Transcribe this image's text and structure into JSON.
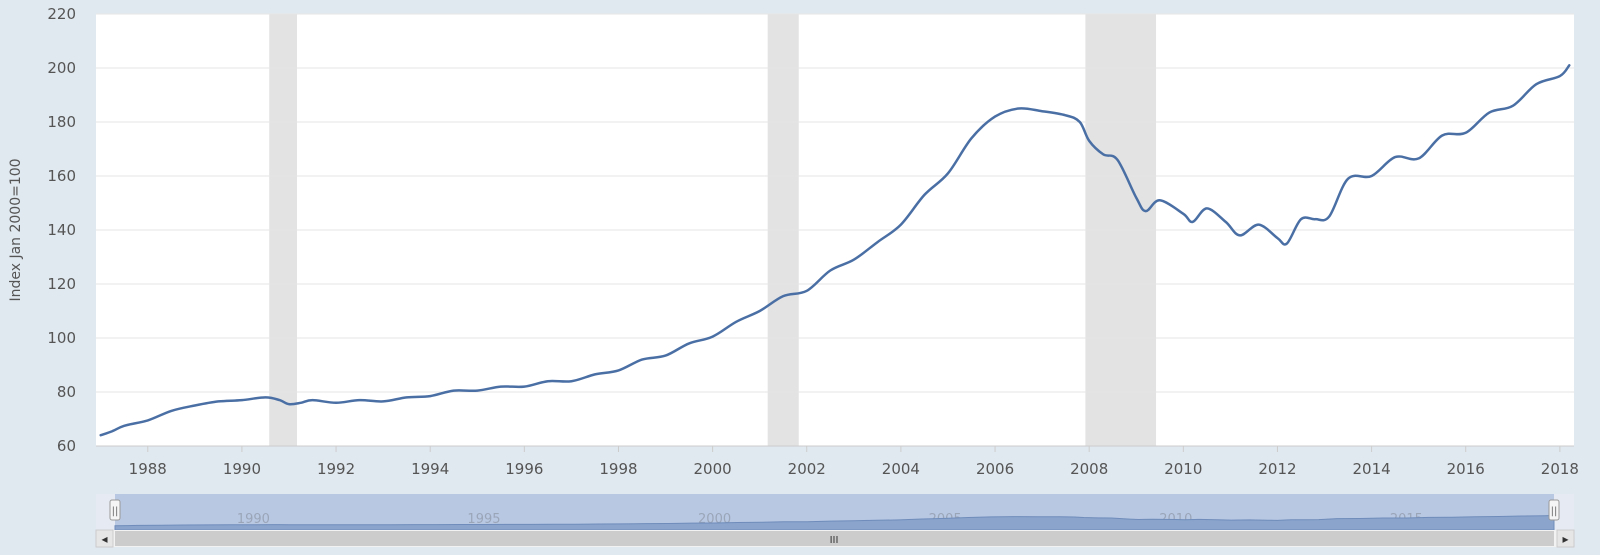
{
  "chart_data": {
    "type": "line",
    "title": "",
    "xlabel": "",
    "ylabel": "Index Jan 2000=100",
    "ylim": [
      60,
      220
    ],
    "xlim": [
      1986.9,
      2018.3
    ],
    "y_ticks": [
      60,
      80,
      100,
      120,
      140,
      160,
      180,
      200,
      220
    ],
    "x_ticks": [
      1988,
      1990,
      1992,
      1994,
      1996,
      1998,
      2000,
      2002,
      2004,
      2006,
      2008,
      2010,
      2012,
      2014,
      2016,
      2018
    ],
    "grid": true,
    "legend": "none",
    "line_color": "#4a6fa5",
    "recessions": [
      [
        1990.58,
        1991.17
      ],
      [
        2001.17,
        2001.83
      ],
      [
        2007.92,
        2009.42
      ]
    ],
    "series": [
      {
        "x": [
          1987.0,
          1987.25,
          1987.5,
          1988.0,
          1988.5,
          1989.0,
          1989.5,
          1990.0,
          1990.5,
          1990.8,
          1991.0,
          1991.25,
          1991.5,
          1992.0,
          1992.5,
          1993.0,
          1993.5,
          1994.0,
          1994.5,
          1995.0,
          1995.5,
          1996.0,
          1996.5,
          1997.0,
          1997.5,
          1998.0,
          1998.5,
          1999.0,
          1999.5,
          2000.0,
          2000.5,
          2001.0,
          2001.5,
          2002.0,
          2002.5,
          2003.0,
          2003.5,
          2004.0,
          2004.5,
          2005.0,
          2005.5,
          2006.0,
          2006.5,
          2007.0,
          2007.5,
          2007.8,
          2008.0,
          2008.3,
          2008.6,
          2009.0,
          2009.2,
          2009.5,
          2010.0,
          2010.2,
          2010.5,
          2010.9,
          2011.2,
          2011.6,
          2012.0,
          2012.2,
          2012.5,
          2012.8,
          2013.1,
          2013.5,
          2014.0,
          2014.5,
          2015.0,
          2015.5,
          2016.0,
          2016.5,
          2017.0,
          2017.5,
          2018.0,
          2018.2
        ],
        "values": [
          64,
          65.5,
          67.5,
          69.5,
          73,
          75,
          76.5,
          77,
          78,
          77,
          75.5,
          76,
          77,
          76,
          77,
          76.5,
          78,
          78.5,
          80.5,
          80.5,
          82,
          82,
          84,
          84,
          86.5,
          88,
          92,
          93.5,
          98,
          100.5,
          106,
          110,
          115.5,
          117.5,
          125,
          129,
          135.5,
          142,
          153,
          161,
          174,
          182,
          185,
          184,
          182.5,
          180,
          173,
          168,
          166,
          152,
          147,
          151,
          146,
          143,
          148,
          143,
          138,
          142,
          137,
          135,
          144,
          144,
          145,
          159,
          160,
          167,
          166.5,
          175,
          176,
          183.5,
          186,
          194,
          197,
          201
        ]
      }
    ],
    "navigator": {
      "labels": [
        "1990",
        "1995",
        "2000",
        "2005",
        "2010",
        "2015"
      ],
      "label_years": [
        1990,
        1995,
        2000,
        2005,
        2010,
        2015
      ]
    }
  },
  "scrollbar": {
    "left_arrow": "◂",
    "right_arrow": "▸",
    "grip": "III",
    "handle_grip": "||"
  },
  "colors": {
    "background": "#e1e9f0",
    "plot_background": "#ffffff",
    "gridline": "#e6e6e6",
    "recession_band": "#e3e3e3",
    "navigator_fill": "#8aa4cc",
    "navigator_selection": "#b8c8e3"
  }
}
